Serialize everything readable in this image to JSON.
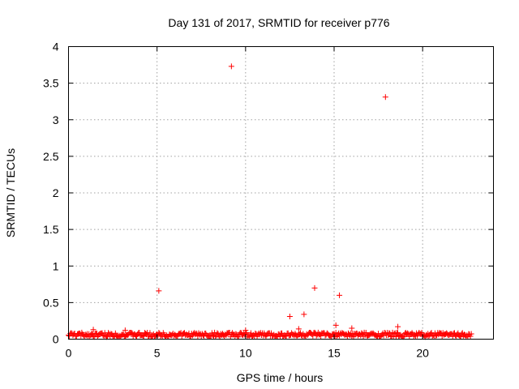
{
  "chart_data": {
    "type": "scatter",
    "title": "Day 131 of 2017, SRMTID for receiver p776",
    "xlabel": "GPS time / hours",
    "ylabel": "SRMTID / TECUs",
    "xlim": [
      0,
      24
    ],
    "ylim": [
      0,
      4
    ],
    "xticks": [
      0,
      5,
      10,
      15,
      20
    ],
    "yticks": [
      0,
      0.5,
      1,
      1.5,
      2,
      2.5,
      3,
      3.5,
      4
    ],
    "grid": true,
    "marker": "plus",
    "series_color": "#ff0000",
    "baseline_band": {
      "x_start": 0.0,
      "x_end": 22.8,
      "y_min": 0.0,
      "y_max": 0.12,
      "typical": 0.06
    },
    "outliers": [
      {
        "x": 5.1,
        "y": 0.66
      },
      {
        "x": 9.2,
        "y": 3.73
      },
      {
        "x": 12.5,
        "y": 0.31
      },
      {
        "x": 13.3,
        "y": 0.34
      },
      {
        "x": 13.9,
        "y": 0.7
      },
      {
        "x": 15.3,
        "y": 0.6
      },
      {
        "x": 17.9,
        "y": 3.31
      },
      {
        "x": 15.1,
        "y": 0.19
      },
      {
        "x": 18.6,
        "y": 0.17
      },
      {
        "x": 16.0,
        "y": 0.15
      },
      {
        "x": 13.0,
        "y": 0.14
      },
      {
        "x": 1.4,
        "y": 0.13
      },
      {
        "x": 3.2,
        "y": 0.12
      },
      {
        "x": 10.0,
        "y": 0.12
      }
    ]
  }
}
